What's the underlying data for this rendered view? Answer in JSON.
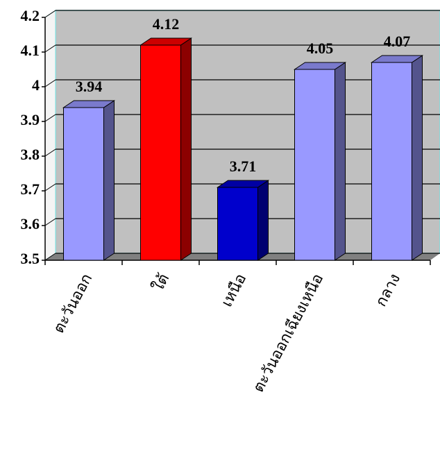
{
  "chart_data": {
    "type": "bar",
    "categories": [
      "ตะวันออก",
      "ใต้",
      "เหนือ",
      "ตะวันออกเฉียงเหนือ",
      "กลาง"
    ],
    "values": [
      3.94,
      4.12,
      3.71,
      4.05,
      4.07
    ],
    "colors": [
      "#9999ff",
      "#ff0000",
      "#0000cc",
      "#9999ff",
      "#9999ff"
    ],
    "ylim": [
      3.5,
      4.2
    ],
    "yticks": [
      3.5,
      3.6,
      3.7,
      3.8,
      3.9,
      4,
      4.1,
      4.2
    ],
    "grid": true
  }
}
